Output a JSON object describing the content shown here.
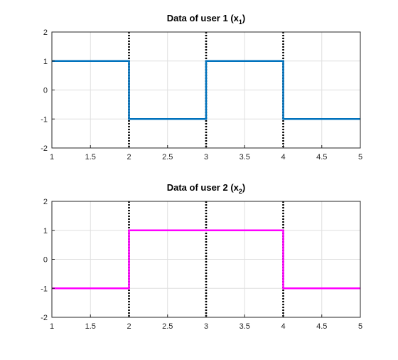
{
  "chart_data": [
    {
      "type": "line",
      "step": true,
      "title": {
        "main": "Data of user 1 (x",
        "sub": "1",
        "close": ")"
      },
      "xlim": [
        1,
        5
      ],
      "ylim": [
        -2,
        2
      ],
      "x_ticks": [
        "1",
        "1.5",
        "2",
        "2.5",
        "3",
        "3.5",
        "4",
        "4.5",
        "5"
      ],
      "y_ticks": [
        "2",
        "1",
        "0",
        "-1",
        "-2"
      ],
      "grid": true,
      "series": [
        {
          "color": "#0072BD",
          "points": [
            [
              1,
              1
            ],
            [
              2,
              1
            ],
            [
              2,
              -1
            ],
            [
              3,
              -1
            ],
            [
              3,
              1
            ],
            [
              4,
              1
            ],
            [
              4,
              -1
            ],
            [
              5,
              -1
            ]
          ]
        }
      ],
      "vertical_lines": {
        "x": [
          2,
          3,
          4
        ],
        "color": "#000000",
        "style": "dotted"
      }
    },
    {
      "type": "line",
      "step": true,
      "title": {
        "main": "Data of user 2 (x",
        "sub": "2",
        "close": ")"
      },
      "xlim": [
        1,
        5
      ],
      "ylim": [
        -2,
        2
      ],
      "x_ticks": [
        "1",
        "1.5",
        "2",
        "2.5",
        "3",
        "3.5",
        "4",
        "4.5",
        "5"
      ],
      "y_ticks": [
        "2",
        "1",
        "0",
        "-1",
        "-2"
      ],
      "grid": true,
      "series": [
        {
          "color": "#FF00FF",
          "points": [
            [
              1,
              -1
            ],
            [
              2,
              -1
            ],
            [
              2,
              1
            ],
            [
              3,
              1
            ],
            [
              4,
              1
            ],
            [
              4,
              -1
            ],
            [
              5,
              -1
            ]
          ]
        }
      ],
      "vertical_lines": {
        "x": [
          2,
          3,
          4
        ],
        "color": "#000000",
        "style": "dotted"
      }
    }
  ]
}
